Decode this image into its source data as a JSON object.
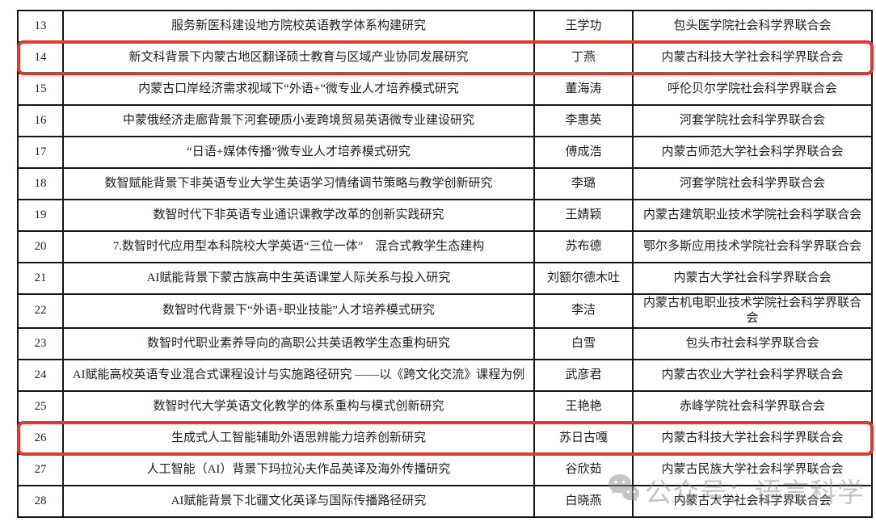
{
  "table": {
    "rows": [
      {
        "no": "13",
        "title": "服务新医科建设地方院校英语教学体系构建研究",
        "leader": "王学功",
        "org": "包头医学院社会科学界联合会",
        "highlighted": false
      },
      {
        "no": "14",
        "title": "新文科背景下内蒙古地区翻译硕士教育与区域产业协同发展研究",
        "leader": "丁燕",
        "org": "内蒙古科技大学社会科学界联合会",
        "highlighted": true
      },
      {
        "no": "15",
        "title": "内蒙古口岸经济需求视域下“外语+”微专业人才培养模式研究",
        "leader": "董海涛",
        "org": "呼伦贝尔学院社会科学界联合会",
        "highlighted": false
      },
      {
        "no": "16",
        "title": "中蒙俄经济走廊背景下河套硬质小麦跨境贸易英语微专业建设研究",
        "leader": "李惠英",
        "org": "河套学院社会科学界联合会",
        "highlighted": false
      },
      {
        "no": "17",
        "title": "“日语+媒体传播”微专业人才培养模式研究",
        "leader": "傅成浩",
        "org": "内蒙古师范大学社会科学界联合会",
        "highlighted": false
      },
      {
        "no": "18",
        "title": "数智赋能背景下非英语专业大学生英语学习情绪调节策略与教学创新研究",
        "leader": "李璐",
        "org": "河套学院社会科学界联合会",
        "highlighted": false
      },
      {
        "no": "19",
        "title": "数智时代下非英语专业通识课教学改革的创新实践研究",
        "leader": "王婧颖",
        "org": "内蒙古建筑职业技术学院社会科学联合会",
        "highlighted": false
      },
      {
        "no": "20",
        "title": "7.数智时代应用型本科院校大学英语“三位一体”　混合式教学生态建构",
        "leader": "苏布德",
        "org": "鄂尔多斯应用技术学院社会科学界联合会",
        "highlighted": false
      },
      {
        "no": "21",
        "title": "AI赋能背景下蒙古族高中生英语课堂人际关系与投入研究",
        "leader": "刘额尔德木吐",
        "org": "内蒙古大学社会科学界联合会",
        "highlighted": false
      },
      {
        "no": "22",
        "title": "数智时代背景下“外语+职业技能”人才培养模式研究",
        "leader": "李洁",
        "org": "内蒙古机电职业技术学院社会科学界联合会",
        "highlighted": false
      },
      {
        "no": "23",
        "title": "数智时代职业素养导向的高职公共英语教学生态重构研究",
        "leader": "白雪",
        "org": "包头市社会科学界联合会",
        "highlighted": false
      },
      {
        "no": "24",
        "title": "AI赋能高校英语专业混合式课程设计与实施路径研究 ——以《跨文化交流》课程为例",
        "leader": "武彦君",
        "org": "内蒙古农业大学社会科学界联合会",
        "highlighted": false
      },
      {
        "no": "25",
        "title": "数智时代大学英语文化教学的体系重构与模式创新研究",
        "leader": "王艳艳",
        "org": "赤峰学院社会科学界联合会",
        "highlighted": false
      },
      {
        "no": "26",
        "title": "生成式人工智能辅助外语思辨能力培养创新研究",
        "leader": "苏日古嘎",
        "org": "内蒙古科技大学社会科学界联合会",
        "highlighted": true
      },
      {
        "no": "27",
        "title": "人工智能（AI）背景下玛拉沁夫作品英译及海外传播研究",
        "leader": "谷欣茹",
        "org": "内蒙古民族大学社会科学界联合会",
        "highlighted": false
      },
      {
        "no": "28",
        "title": "AI赋能背景下北疆文化英译与国际传播路径研究",
        "leader": "白晓燕",
        "org": "内蒙古大学社会科学界联合会",
        "highlighted": false
      }
    ]
  },
  "highlight": {
    "color": "#e8362a"
  },
  "watermark": {
    "icon": "wechat-icon",
    "text": "公众号：语言科学",
    "color": "#8d8d8d"
  }
}
